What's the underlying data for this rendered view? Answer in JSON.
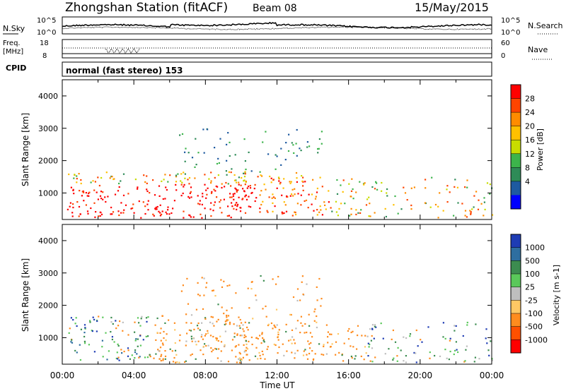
{
  "header": {
    "station": "Zhongshan Station (fitACF)",
    "beam": "Beam 08",
    "date": "15/May/2015"
  },
  "noise_panel": {
    "left_label": "N.Sky",
    "right_label": "N.Search",
    "left_ticks": [
      "10^5",
      "10^0"
    ],
    "right_ticks": [
      "10^5",
      "10^0"
    ]
  },
  "freq_panel": {
    "left_label_line1": "Freq.",
    "left_label_line2": "[MHz]",
    "right_label": "Nave",
    "left_ticks": [
      "18",
      "8"
    ],
    "right_ticks": [
      "60",
      "0"
    ]
  },
  "cpid_panel": {
    "label": "CPID",
    "text": "normal (fast stereo) 153"
  },
  "chart_data": [
    {
      "type": "heatmap",
      "quantity": "Power",
      "ylabel": "Slant Range [km]",
      "ylim": [
        180,
        4500
      ],
      "y_ticks": [
        "4000",
        "3000",
        "2000",
        "1000"
      ],
      "x_ticks": [
        "00:00",
        "04:00",
        "08:00",
        "12:00",
        "16:00",
        "20:00",
        "00:00"
      ],
      "colorbar": {
        "label": "Power [dB]",
        "ticks": [
          "28",
          "24",
          "20",
          "16",
          "12",
          "8",
          "4"
        ],
        "colors": [
          "#ff0000",
          "#ff4400",
          "#ff8c00",
          "#ffc000",
          "#c8dc00",
          "#3cb44b",
          "#2e8b57",
          "#1e5aa0",
          "#0000ff"
        ]
      }
    },
    {
      "type": "heatmap",
      "quantity": "Velocity",
      "ylabel": "Slant Range [km]",
      "xlabel": "Time UT",
      "ylim": [
        180,
        4500
      ],
      "y_ticks": [
        "4000",
        "3000",
        "2000",
        "1000"
      ],
      "x_ticks": [
        "00:00",
        "04:00",
        "08:00",
        "12:00",
        "16:00",
        "20:00",
        "00:00"
      ],
      "colorbar": {
        "label": "Velocity [m s-1]",
        "ticks": [
          "1000",
          "500",
          "100",
          "25",
          "-25",
          "-100",
          "-500",
          "-1000"
        ],
        "colors": [
          "#1e3cb4",
          "#2e6ea0",
          "#3c8c50",
          "#5ac85a",
          "#bebebe",
          "#ffc864",
          "#ff8c1e",
          "#ff5000",
          "#ff0000"
        ]
      }
    }
  ]
}
